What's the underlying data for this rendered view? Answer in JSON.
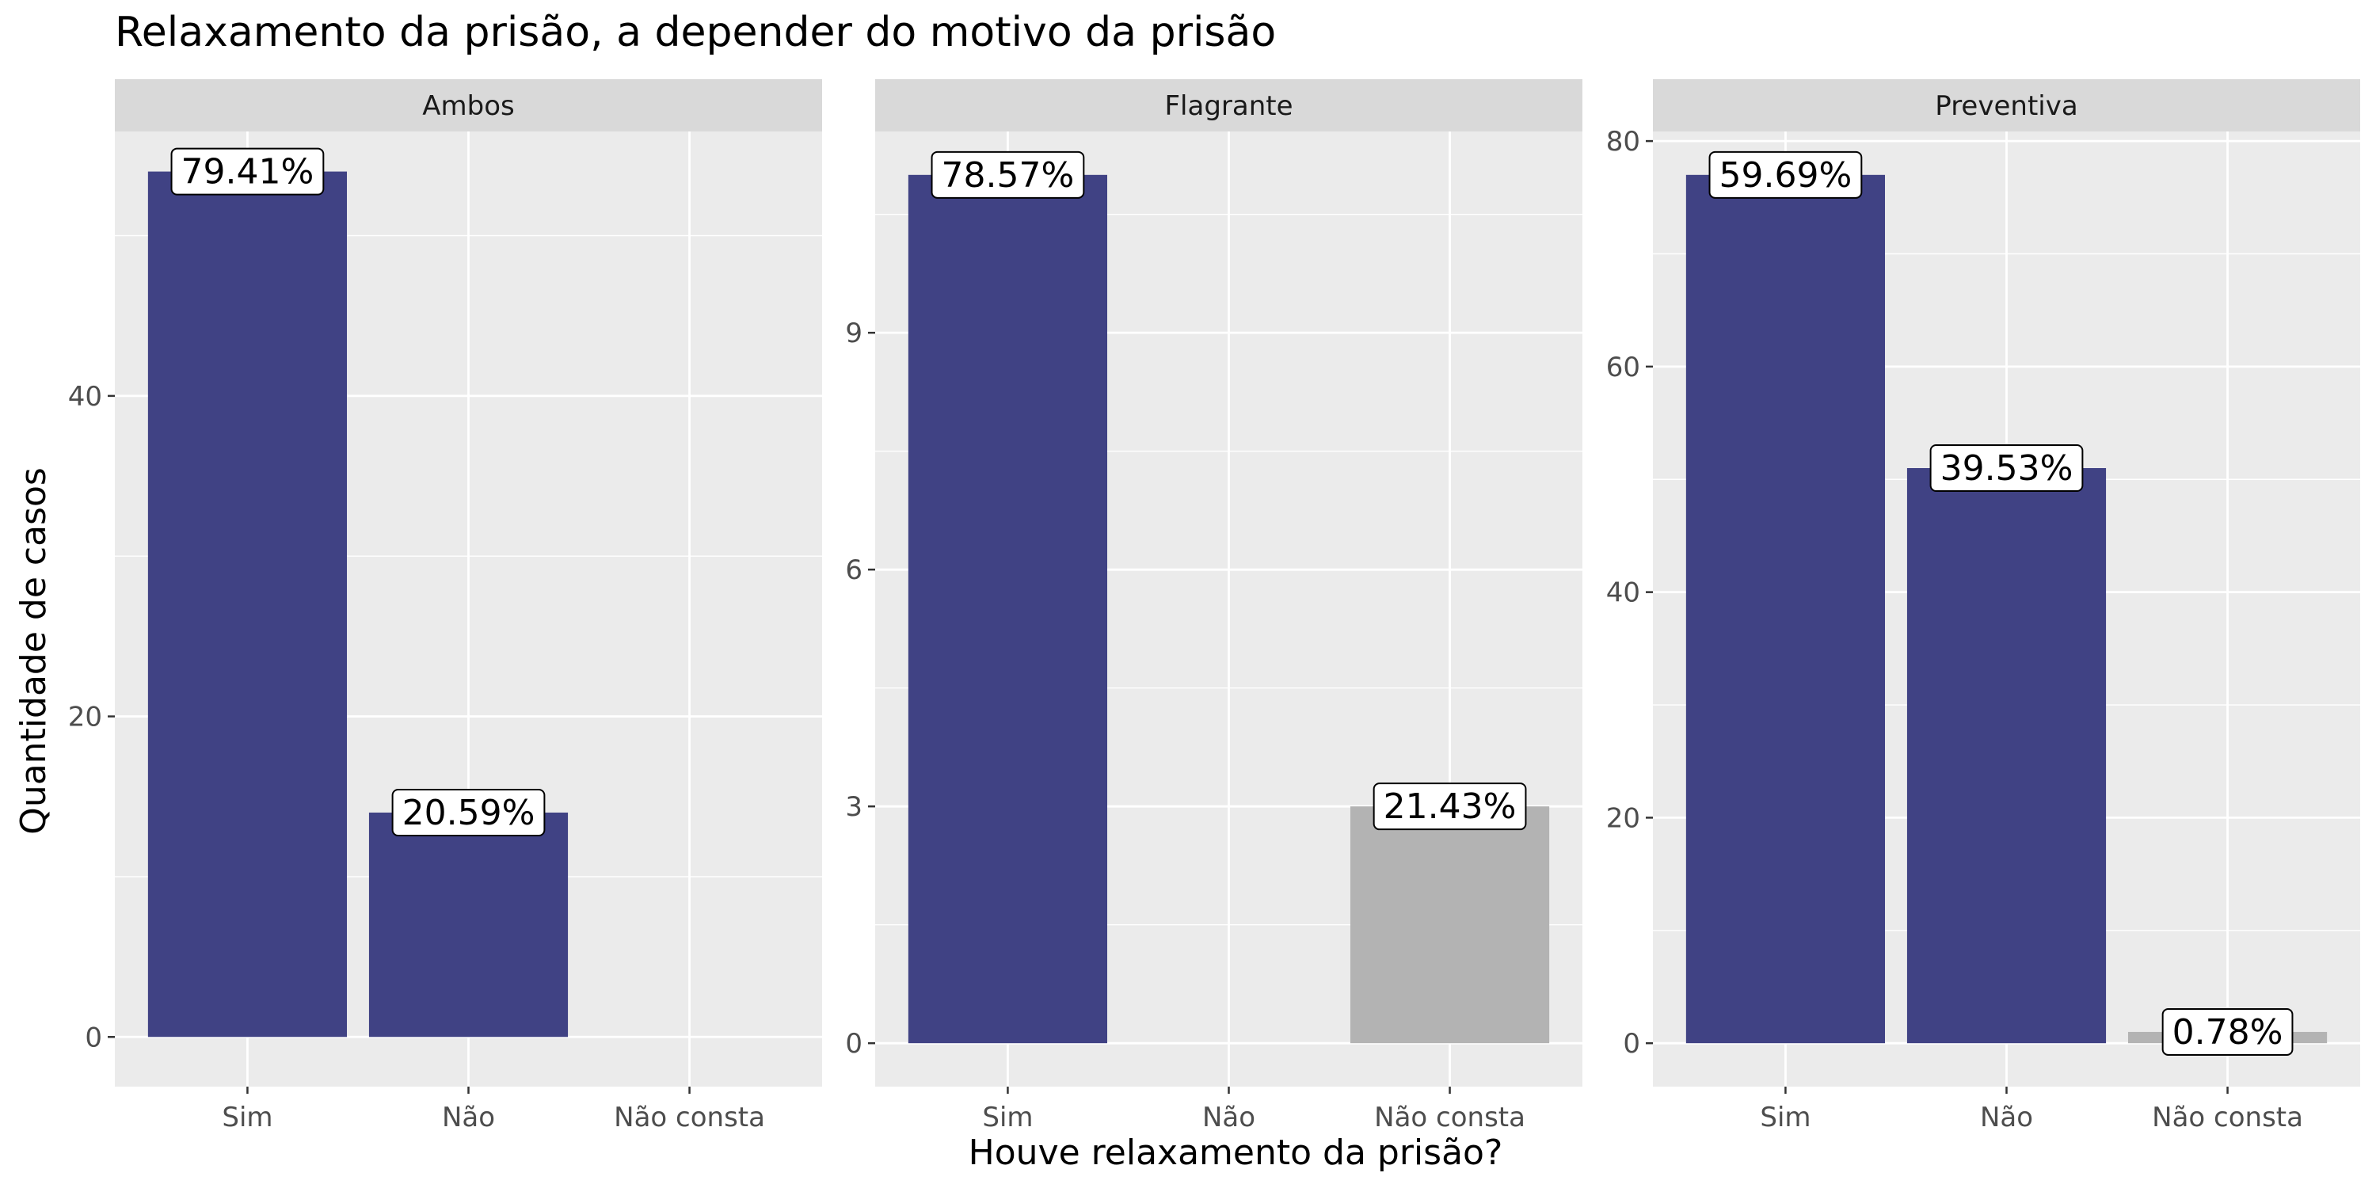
{
  "chart_data": {
    "type": "bar",
    "title": "Relaxamento da prisão, a depender do motivo da prisão",
    "xlabel": "Houve relaxamento da prisão?",
    "ylabel": "Quantidade de casos",
    "categories": [
      "Sim",
      "Não",
      "Não consta"
    ],
    "colors": {
      "Sim": "#404284",
      "Não": "#404284",
      "Não consta": "#b3b3b3"
    },
    "grid": true,
    "facets": [
      {
        "name": "Ambos",
        "ylim": [
          -3.1,
          56.5
        ],
        "yticks": [
          0,
          20,
          40
        ],
        "values": [
          54,
          14,
          0
        ],
        "labels": [
          "79.41%",
          "20.59%",
          ""
        ]
      },
      {
        "name": "Flagrante",
        "ylim": [
          -0.55,
          11.55
        ],
        "yticks": [
          0,
          3,
          6,
          9
        ],
        "values": [
          11,
          0,
          3
        ],
        "labels": [
          "78.57%",
          "",
          "21.43%"
        ]
      },
      {
        "name": "Preventiva",
        "ylim": [
          -3.85,
          80.85
        ],
        "yticks": [
          0,
          20,
          40,
          60,
          80
        ],
        "values": [
          77,
          51,
          1
        ],
        "labels": [
          "59.69%",
          "39.53%",
          "0.78%"
        ]
      }
    ]
  }
}
